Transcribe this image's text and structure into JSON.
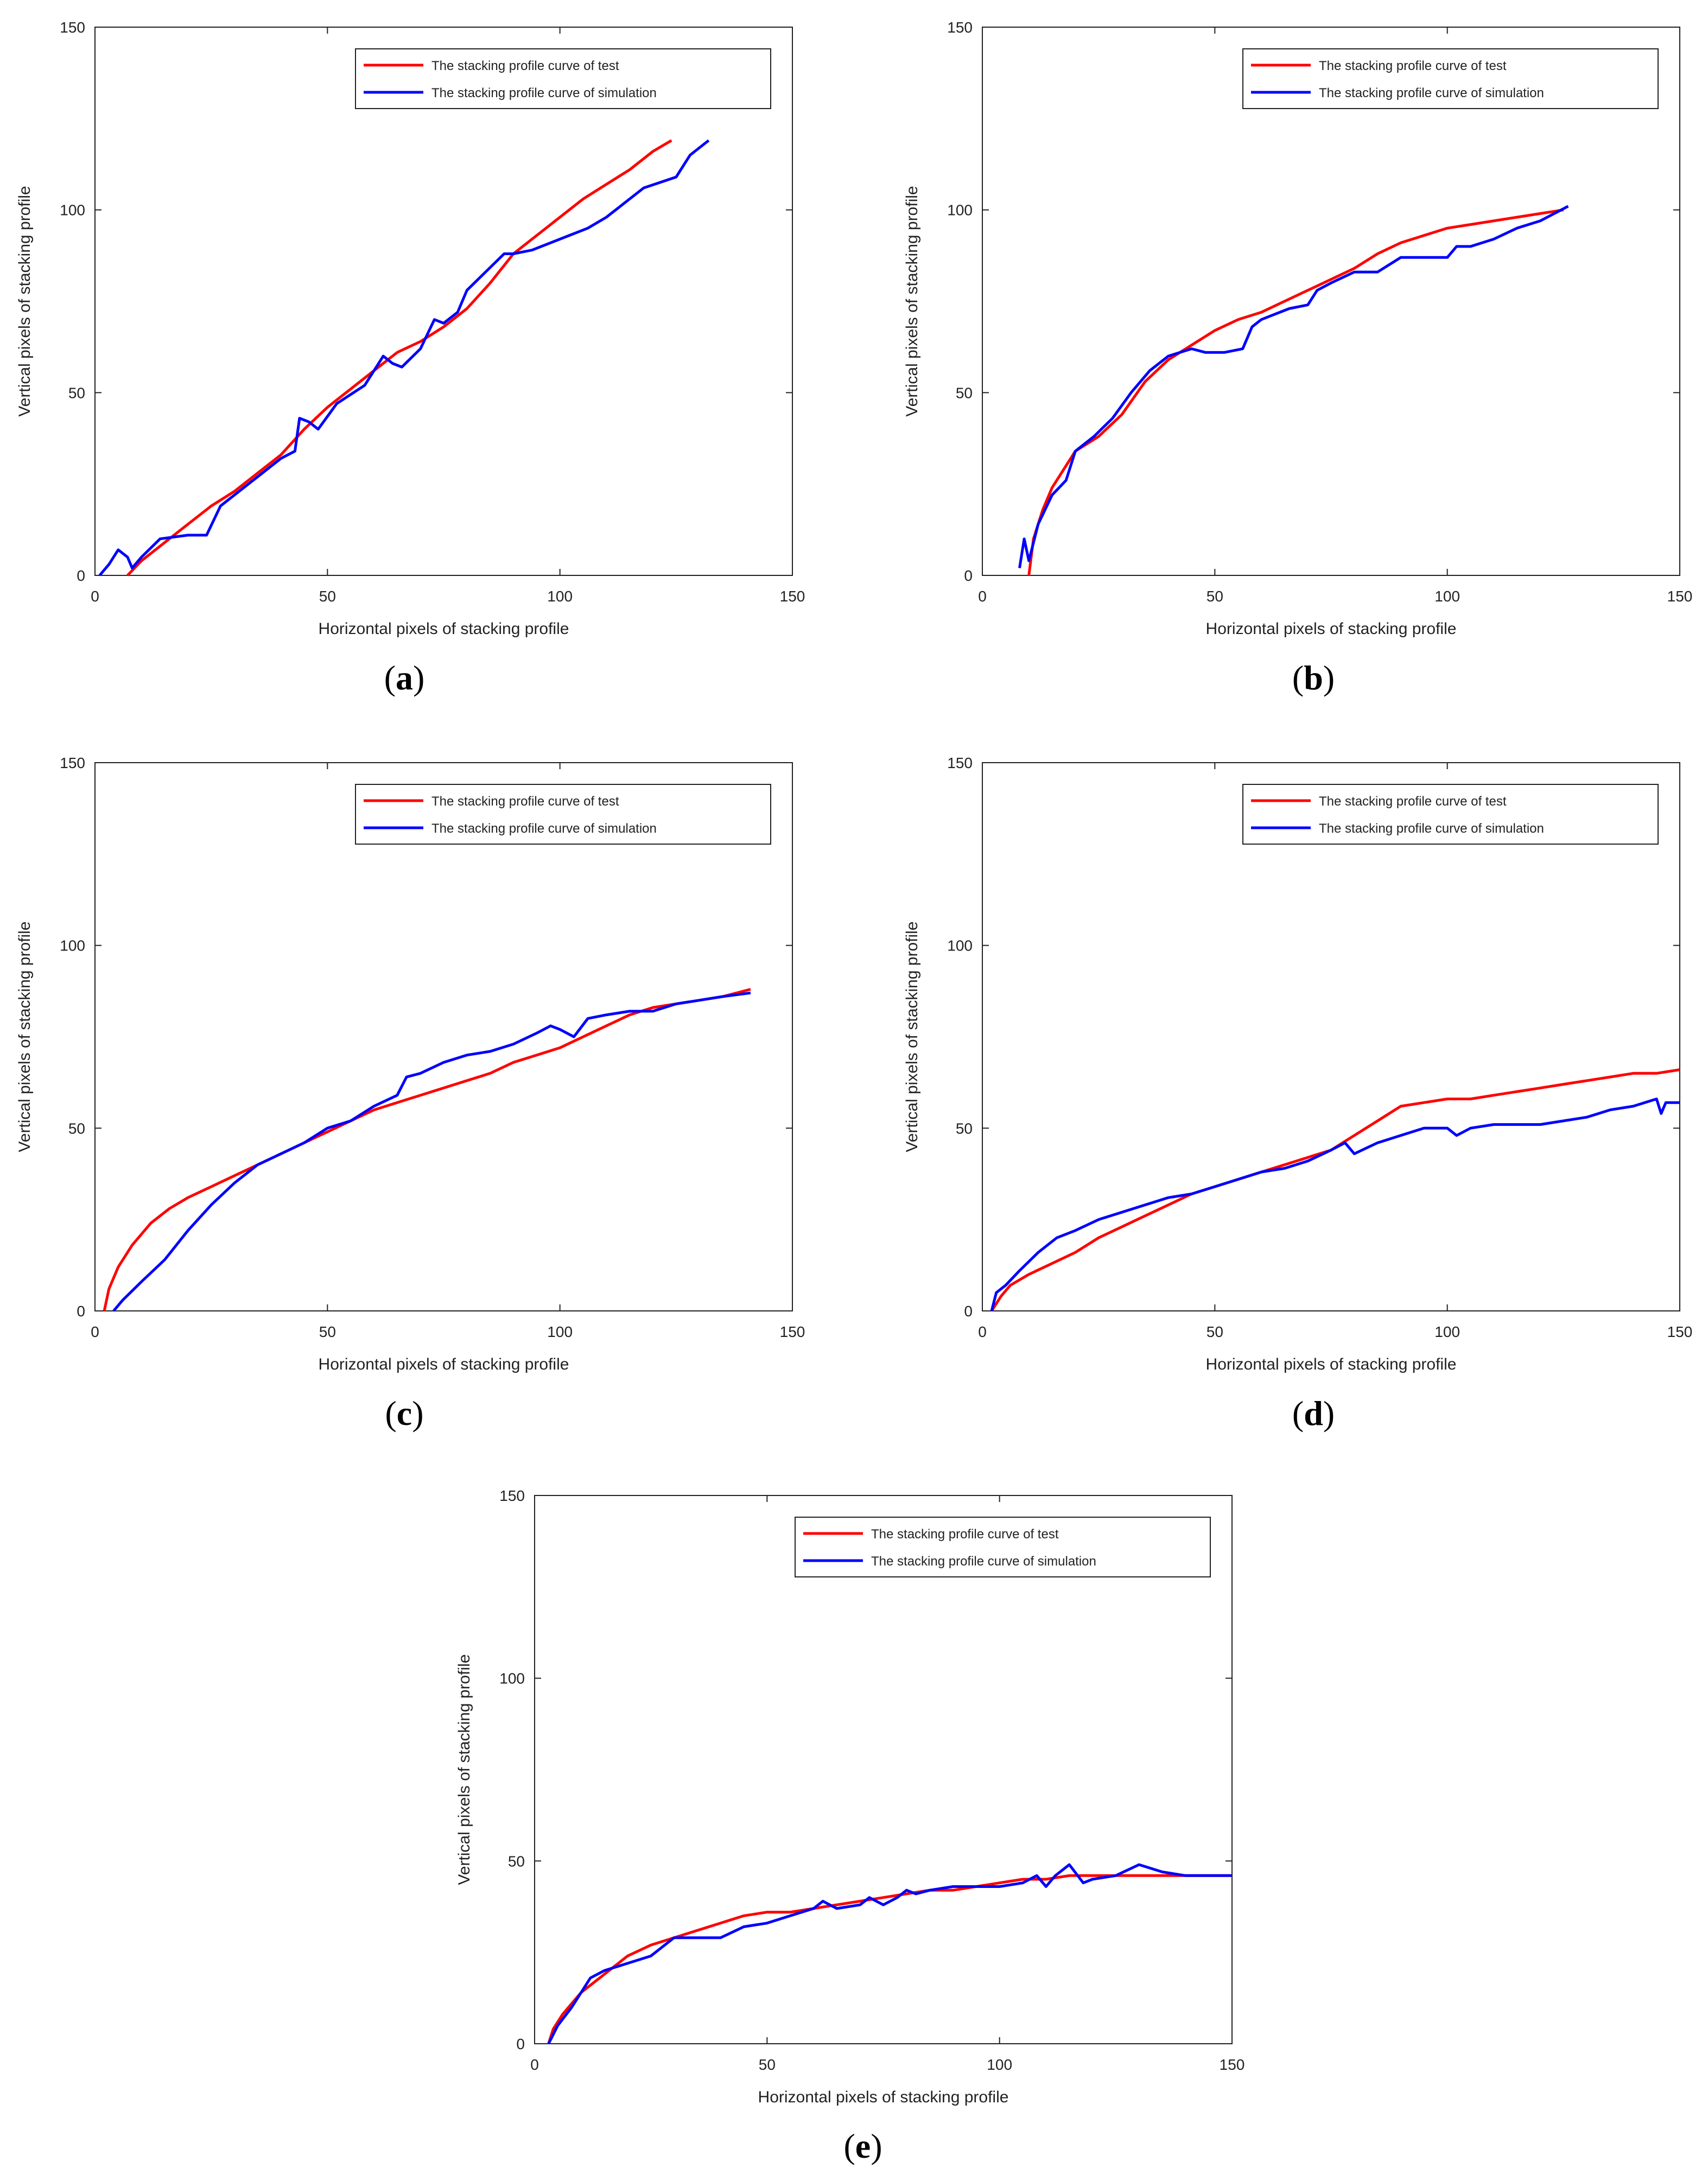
{
  "chart_data": [
    {
      "panel": "(a)",
      "panel_letter": "a",
      "type": "line",
      "xlabel": "Horizontal pixels of stacking profile",
      "ylabel": "Vertical pixels of stacking profile",
      "xlim": [
        0,
        150
      ],
      "ylim": [
        0,
        150
      ],
      "xticks": [
        0,
        50,
        100,
        150
      ],
      "yticks": [
        0,
        50,
        100,
        150
      ],
      "legend_position": "top-right",
      "series": [
        {
          "name": "The stacking profile curve of test",
          "color": "#ff0000",
          "x": [
            7,
            10,
            15,
            20,
            25,
            30,
            35,
            40,
            45,
            50,
            55,
            60,
            65,
            70,
            75,
            80,
            85,
            90,
            95,
            100,
            105,
            110,
            115,
            120,
            124
          ],
          "y": [
            0,
            4,
            9,
            14,
            19,
            23,
            28,
            33,
            40,
            46,
            51,
            56,
            61,
            64,
            68,
            73,
            80,
            88,
            93,
            98,
            103,
            107,
            111,
            116,
            119
          ]
        },
        {
          "name": "The stacking profile curve of simulation",
          "color": "#0000ff",
          "x": [
            1,
            3,
            5,
            7,
            8,
            10,
            14,
            20,
            24,
            27,
            32,
            36,
            40,
            43,
            44,
            46,
            48,
            52,
            58,
            61,
            62,
            64,
            66,
            70,
            73,
            75,
            78,
            80,
            84,
            88,
            90,
            94,
            100,
            106,
            110,
            118,
            125,
            128,
            132
          ],
          "y": [
            0,
            3,
            7,
            5,
            2,
            5,
            10,
            11,
            11,
            19,
            24,
            28,
            32,
            34,
            43,
            42,
            40,
            47,
            52,
            58,
            60,
            58,
            57,
            62,
            70,
            69,
            72,
            78,
            83,
            88,
            88,
            89,
            92,
            95,
            98,
            106,
            109,
            115,
            119
          ]
        }
      ]
    },
    {
      "panel": "(b)",
      "panel_letter": "b",
      "type": "line",
      "xlabel": "Horizontal pixels of stacking profile",
      "ylabel": "Vertical pixels of stacking profile",
      "xlim": [
        0,
        150
      ],
      "ylim": [
        0,
        150
      ],
      "xticks": [
        0,
        50,
        100,
        150
      ],
      "yticks": [
        0,
        50,
        100,
        150
      ],
      "legend_position": "top-right",
      "series": [
        {
          "name": "The stacking profile curve of test",
          "color": "#ff0000",
          "x": [
            10,
            11,
            13,
            15,
            18,
            20,
            25,
            30,
            35,
            40,
            45,
            50,
            55,
            60,
            65,
            70,
            75,
            80,
            85,
            90,
            95,
            100,
            105,
            110,
            115,
            120,
            125
          ],
          "y": [
            0,
            10,
            18,
            24,
            30,
            34,
            38,
            44,
            53,
            59,
            63,
            67,
            70,
            72,
            75,
            78,
            81,
            84,
            88,
            91,
            93,
            95,
            96,
            97,
            98,
            99,
            100
          ]
        },
        {
          "name": "The stacking profile curve of simulation",
          "color": "#0000ff",
          "x": [
            8,
            9,
            10,
            12,
            15,
            18,
            20,
            24,
            28,
            32,
            36,
            40,
            45,
            48,
            52,
            56,
            58,
            60,
            62,
            66,
            70,
            72,
            75,
            80,
            85,
            90,
            95,
            100,
            102,
            105,
            110,
            115,
            120,
            126
          ],
          "y": [
            2,
            10,
            4,
            14,
            22,
            26,
            34,
            38,
            43,
            50,
            56,
            60,
            62,
            61,
            61,
            62,
            68,
            70,
            71,
            73,
            74,
            78,
            80,
            83,
            83,
            87,
            87,
            87,
            90,
            90,
            92,
            95,
            97,
            101
          ]
        }
      ]
    },
    {
      "panel": "(c)",
      "panel_letter": "c",
      "type": "line",
      "xlabel": "Horizontal pixels of stacking profile",
      "ylabel": "Vertical pixels of stacking profile",
      "xlim": [
        0,
        150
      ],
      "ylim": [
        0,
        150
      ],
      "xticks": [
        0,
        50,
        100,
        150
      ],
      "yticks": [
        0,
        50,
        100,
        150
      ],
      "legend_position": "top-right",
      "series": [
        {
          "name": "The stacking profile curve of test",
          "color": "#ff0000",
          "x": [
            2,
            3,
            5,
            8,
            12,
            16,
            20,
            25,
            30,
            35,
            40,
            45,
            50,
            55,
            60,
            65,
            70,
            75,
            80,
            85,
            90,
            95,
            100,
            105,
            110,
            115,
            120,
            125,
            130,
            135,
            141
          ],
          "y": [
            0,
            6,
            12,
            18,
            24,
            28,
            31,
            34,
            37,
            40,
            43,
            46,
            49,
            52,
            55,
            57,
            59,
            61,
            63,
            65,
            68,
            70,
            72,
            75,
            78,
            81,
            83,
            84,
            85,
            86,
            88
          ]
        },
        {
          "name": "The stacking profile curve of simulation",
          "color": "#0000ff",
          "x": [
            4,
            6,
            10,
            15,
            20,
            25,
            30,
            35,
            40,
            45,
            50,
            55,
            60,
            65,
            67,
            70,
            75,
            80,
            85,
            90,
            95,
            98,
            100,
            103,
            106,
            110,
            115,
            120,
            125,
            130,
            135,
            141
          ],
          "y": [
            0,
            3,
            8,
            14,
            22,
            29,
            35,
            40,
            43,
            46,
            50,
            52,
            56,
            59,
            64,
            65,
            68,
            70,
            71,
            73,
            76,
            78,
            77,
            75,
            80,
            81,
            82,
            82,
            84,
            85,
            86,
            87
          ]
        }
      ]
    },
    {
      "panel": "(d)",
      "panel_letter": "d",
      "type": "line",
      "xlabel": "Horizontal pixels of stacking profile",
      "ylabel": "Vertical pixels of stacking profile",
      "xlim": [
        0,
        150
      ],
      "ylim": [
        0,
        150
      ],
      "xticks": [
        0,
        50,
        100,
        150
      ],
      "yticks": [
        0,
        50,
        100,
        150
      ],
      "legend_position": "top-right",
      "series": [
        {
          "name": "The stacking profile curve of test",
          "color": "#ff0000",
          "x": [
            2,
            4,
            6,
            10,
            15,
            20,
            25,
            30,
            35,
            40,
            45,
            50,
            55,
            60,
            65,
            70,
            75,
            80,
            85,
            90,
            95,
            100,
            105,
            110,
            115,
            120,
            125,
            130,
            135,
            140,
            145,
            150
          ],
          "y": [
            0,
            4,
            7,
            10,
            13,
            16,
            20,
            23,
            26,
            29,
            32,
            34,
            36,
            38,
            40,
            42,
            44,
            48,
            52,
            56,
            57,
            58,
            58,
            59,
            60,
            61,
            62,
            63,
            64,
            65,
            65,
            66
          ]
        },
        {
          "name": "The stacking profile curve of simulation",
          "color": "#0000ff",
          "x": [
            2,
            3,
            5,
            8,
            12,
            16,
            20,
            25,
            30,
            35,
            40,
            45,
            50,
            55,
            60,
            65,
            70,
            75,
            78,
            80,
            85,
            90,
            95,
            100,
            102,
            105,
            110,
            115,
            120,
            125,
            130,
            135,
            140,
            145,
            146,
            147,
            150
          ],
          "y": [
            0,
            5,
            7,
            11,
            16,
            20,
            22,
            25,
            27,
            29,
            31,
            32,
            34,
            36,
            38,
            39,
            41,
            44,
            46,
            43,
            46,
            48,
            50,
            50,
            48,
            50,
            51,
            51,
            51,
            52,
            53,
            55,
            56,
            58,
            54,
            57,
            57
          ]
        }
      ]
    },
    {
      "panel": "(e)",
      "panel_letter": "e",
      "type": "line",
      "xlabel": "Horizontal pixels of stacking profile",
      "ylabel": "Vertical pixels of stacking profile",
      "xlim": [
        0,
        150
      ],
      "ylim": [
        0,
        150
      ],
      "xticks": [
        0,
        50,
        100,
        150
      ],
      "yticks": [
        0,
        50,
        100,
        150
      ],
      "legend_position": "top-right",
      "series": [
        {
          "name": "The stacking profile curve of test",
          "color": "#ff0000",
          "x": [
            3,
            4,
            6,
            8,
            10,
            13,
            16,
            20,
            25,
            30,
            35,
            40,
            45,
            50,
            55,
            60,
            65,
            70,
            75,
            80,
            85,
            90,
            95,
            100,
            105,
            110,
            115,
            120,
            125,
            130,
            135,
            140,
            150
          ],
          "y": [
            0,
            4,
            8,
            11,
            14,
            17,
            20,
            24,
            27,
            29,
            31,
            33,
            35,
            36,
            36,
            37,
            38,
            39,
            40,
            41,
            42,
            42,
            43,
            44,
            45,
            45,
            46,
            46,
            46,
            46,
            46,
            46,
            46
          ]
        },
        {
          "name": "The stacking profile curve of simulation",
          "color": "#0000ff",
          "x": [
            3,
            5,
            8,
            10,
            12,
            15,
            20,
            25,
            30,
            35,
            40,
            45,
            50,
            55,
            60,
            62,
            65,
            70,
            72,
            75,
            78,
            80,
            82,
            85,
            90,
            95,
            100,
            105,
            108,
            110,
            112,
            115,
            118,
            120,
            125,
            130,
            135,
            140,
            150
          ],
          "y": [
            0,
            5,
            10,
            14,
            18,
            20,
            22,
            24,
            29,
            29,
            29,
            32,
            33,
            35,
            37,
            39,
            37,
            38,
            40,
            38,
            40,
            42,
            41,
            42,
            43,
            43,
            43,
            44,
            46,
            43,
            46,
            49,
            44,
            45,
            46,
            49,
            47,
            46,
            46
          ]
        }
      ]
    }
  ]
}
